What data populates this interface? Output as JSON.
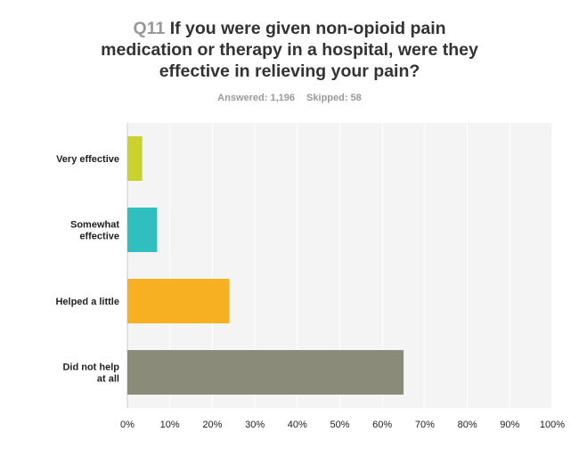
{
  "header": {
    "question_number": "Q11",
    "question_text": "If you were given non-opioid pain medication or therapy in a hospital, were they effective in relieving your pain?",
    "answered": "Answered: 1,196",
    "skipped": "Skipped: 58"
  },
  "chart_data": {
    "type": "bar",
    "orientation": "horizontal",
    "categories": [
      [
        "Very effective"
      ],
      [
        "Somewhat",
        "effective"
      ],
      [
        "Helped a little"
      ],
      [
        "Did not help",
        "at all"
      ]
    ],
    "values": [
      3.5,
      7,
      24,
      65
    ],
    "colors": [
      "#c9d32c",
      "#2fbfbf",
      "#f7b022",
      "#8a8b79"
    ],
    "xlim": [
      0,
      100
    ],
    "xticks": [
      "0%",
      "10%",
      "20%",
      "30%",
      "40%",
      "50%",
      "60%",
      "70%",
      "80%",
      "90%",
      "100%"
    ],
    "grid": true,
    "plot_background": "#f4f4f4"
  }
}
